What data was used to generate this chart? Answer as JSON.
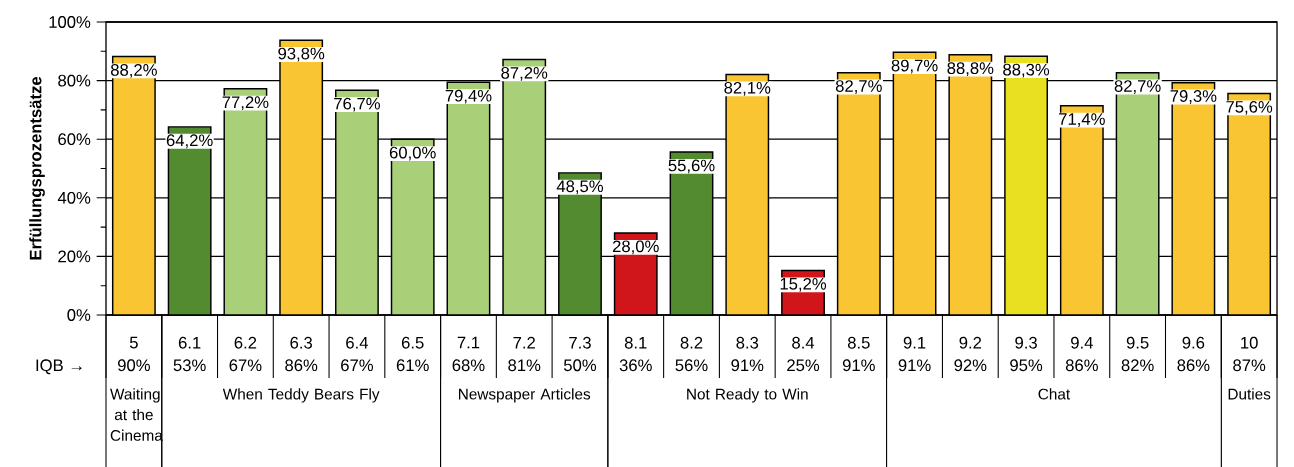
{
  "chart_data": {
    "type": "bar",
    "ylabel": "Erfüllungsprozentsätze",
    "categories": [
      "5",
      "6.1",
      "6.2",
      "6.3",
      "6.4",
      "6.5",
      "7.1",
      "7.2",
      "7.3",
      "8.1",
      "8.2",
      "8.3",
      "8.4",
      "8.5",
      "9.1",
      "9.2",
      "9.3",
      "9.4",
      "9.5",
      "9.6",
      "10"
    ],
    "values": [
      88.2,
      64.2,
      77.2,
      93.8,
      76.7,
      60.0,
      79.4,
      87.2,
      48.5,
      28.0,
      55.6,
      82.1,
      15.2,
      82.7,
      89.7,
      88.8,
      88.3,
      71.4,
      82.7,
      79.3,
      75.6
    ],
    "value_labels": [
      "88,2%",
      "64,2%",
      "77,2%",
      "93,8%",
      "76,7%",
      "60,0%",
      "79,4%",
      "87,2%",
      "48,5%",
      "28,0%",
      "55,6%",
      "82,1%",
      "15,2%",
      "82,7%",
      "89,7%",
      "88,8%",
      "88,3%",
      "71,4%",
      "82,7%",
      "79,3%",
      "75,6%"
    ],
    "colors": [
      "#f9c532",
      "#528b30",
      "#a9cf78",
      "#f9c532",
      "#a9cf78",
      "#a9cf78",
      "#a9cf78",
      "#a9cf78",
      "#528b30",
      "#d0161b",
      "#528b30",
      "#f9c532",
      "#d0161b",
      "#f9c532",
      "#f9c532",
      "#f9c532",
      "#e8e020",
      "#f9c532",
      "#a9cf78",
      "#f9c532",
      "#f9c532"
    ],
    "ylim": [
      0,
      100
    ],
    "yticks": [
      {
        "value": 0,
        "label": "0%"
      },
      {
        "value": 10,
        "label": null
      },
      {
        "value": 20,
        "label": "20%"
      },
      {
        "value": 30,
        "label": null
      },
      {
        "value": 40,
        "label": "40%"
      },
      {
        "value": 50,
        "label": null
      },
      {
        "value": 60,
        "label": "60%"
      },
      {
        "value": 70,
        "label": null
      },
      {
        "value": 80,
        "label": "80%"
      },
      {
        "value": 90,
        "label": null
      },
      {
        "value": 100,
        "label": "100%"
      }
    ],
    "grid": "y",
    "annotations": [
      "IQB →",
      "90%",
      "53%",
      "67%",
      "86%",
      "67%",
      "61%",
      "68%",
      "81%",
      "50%",
      "36%",
      "56%",
      "91%",
      "25%",
      "91%",
      "91%",
      "92%",
      "95%",
      "86%",
      "82%",
      "86%",
      "87%",
      "Waiting at the Cinema",
      "When Teddy Bears Fly",
      "Newspaper Articles",
      "Not Ready to Win",
      "Chat",
      "Duties"
    ]
  }
}
